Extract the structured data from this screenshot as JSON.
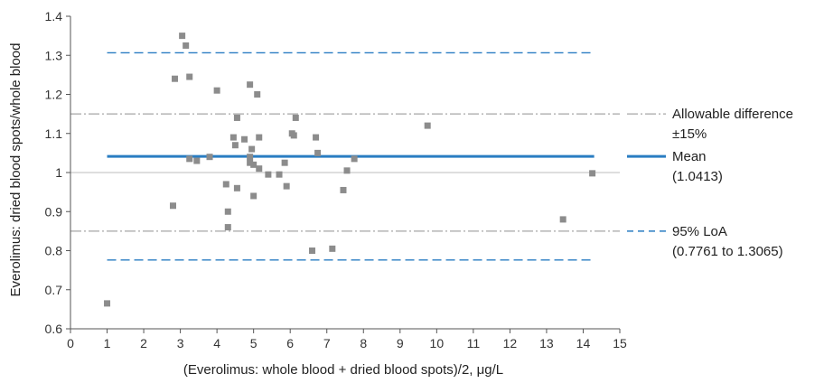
{
  "chart_data": {
    "type": "scatter",
    "xlabel": "(Everolimus: whole blood + dried blood spots)/2, μg/L",
    "ylabel": "Everolimus: dried blood spots/whole blood",
    "xlim": [
      0,
      15
    ],
    "ylim": [
      0.6,
      1.4
    ],
    "xticks": [
      "0",
      "1",
      "2",
      "3",
      "4",
      "5",
      "6",
      "7",
      "8",
      "9",
      "10",
      "11",
      "12",
      "13",
      "14",
      "15"
    ],
    "yticks": [
      "0.6",
      "0.7",
      "0.8",
      "0.9",
      "1",
      "1.1",
      "1.2",
      "1.3",
      "1.4"
    ],
    "grid": false,
    "points": [
      [
        1.0,
        0.665
      ],
      [
        2.8,
        0.915
      ],
      [
        2.85,
        1.24
      ],
      [
        3.05,
        1.35
      ],
      [
        3.15,
        1.325
      ],
      [
        3.25,
        1.245
      ],
      [
        3.25,
        1.035
      ],
      [
        3.45,
        1.03
      ],
      [
        3.8,
        1.04
      ],
      [
        4.0,
        1.21
      ],
      [
        4.25,
        0.97
      ],
      [
        4.3,
        0.9
      ],
      [
        4.3,
        0.86
      ],
      [
        4.45,
        1.09
      ],
      [
        4.5,
        1.07
      ],
      [
        4.55,
        1.14
      ],
      [
        4.55,
        0.96
      ],
      [
        4.75,
        1.085
      ],
      [
        4.9,
        1.225
      ],
      [
        4.9,
        1.025
      ],
      [
        4.9,
        1.04
      ],
      [
        4.95,
        1.06
      ],
      [
        5.0,
        1.02
      ],
      [
        5.0,
        0.94
      ],
      [
        5.1,
        1.2
      ],
      [
        5.15,
        1.09
      ],
      [
        5.15,
        1.01
      ],
      [
        5.4,
        0.995
      ],
      [
        5.7,
        0.995
      ],
      [
        5.85,
        1.025
      ],
      [
        5.9,
        0.965
      ],
      [
        6.05,
        1.1
      ],
      [
        6.1,
        1.095
      ],
      [
        6.15,
        1.14
      ],
      [
        6.6,
        0.8
      ],
      [
        6.7,
        1.09
      ],
      [
        6.75,
        1.05
      ],
      [
        7.15,
        0.805
      ],
      [
        7.45,
        0.955
      ],
      [
        7.55,
        1.005
      ],
      [
        7.75,
        1.035
      ],
      [
        9.75,
        1.12
      ],
      [
        13.45,
        0.88
      ],
      [
        14.25,
        0.998
      ]
    ],
    "lines": {
      "mean": 1.0413,
      "loa_upper": 1.3065,
      "loa_lower": 0.7761,
      "allow_upper": 1.15,
      "allow_lower": 0.85,
      "reference": 1.0
    },
    "colors": {
      "points": "#8c8c8c",
      "mean": "#2a7dc2",
      "loa": "#2a7dc2",
      "allowable": "#a6a6a6",
      "reference": "#bdbdbd",
      "axis": "#555555"
    },
    "legend": [
      {
        "key": "allowable",
        "lines": [
          "Allowable difference",
          "±15%"
        ]
      },
      {
        "key": "mean",
        "lines": [
          "Mean",
          "(1.0413)"
        ]
      },
      {
        "key": "loa",
        "lines": [
          "95% LoA",
          "(0.7761 to 1.3065)"
        ]
      }
    ]
  }
}
